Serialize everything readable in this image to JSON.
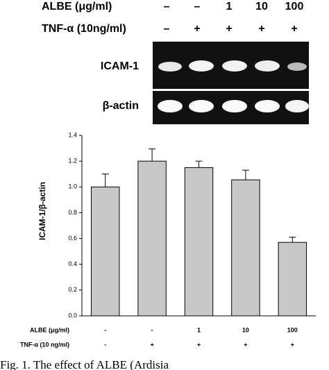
{
  "gel": {
    "rows": [
      {
        "label": "ALBE (μg/ml)",
        "lanes": [
          "–",
          "–",
          "1",
          "10",
          "100"
        ]
      },
      {
        "label": "TNF-α (10ng/ml)",
        "lanes": [
          "–",
          "+",
          "+",
          "+",
          "+"
        ]
      }
    ],
    "bands": [
      "ICAM-1",
      "β-actin"
    ]
  },
  "chart_data": {
    "type": "bar",
    "categories": [
      null,
      null,
      null,
      null,
      null
    ],
    "values": [
      1.0,
      1.2,
      1.15,
      1.055,
      0.57
    ],
    "errors": [
      0.1,
      0.095,
      0.05,
      0.075,
      0.04
    ],
    "color": "#c8c8c8",
    "ylabel": "ICAM-1/β-actin",
    "ylim": [
      0,
      1.4
    ],
    "yticks": [
      {
        "value": 0,
        "label": "0.0"
      },
      0.2,
      0.4,
      0.6,
      0.8,
      {
        "value": 1,
        "label": "1.0"
      },
      1.2,
      1.4
    ],
    "conditions": [
      {
        "label": "ALBE (μg/ml)",
        "lanes": [
          "-",
          "-",
          "1",
          "10",
          "100"
        ]
      },
      {
        "label": "TNF-α (10 ng/ml)",
        "lanes": [
          "-",
          "+",
          "+",
          "+",
          "+"
        ]
      }
    ]
  },
  "caption": "Fig. 1. The effect of ALBE (Ardisia"
}
